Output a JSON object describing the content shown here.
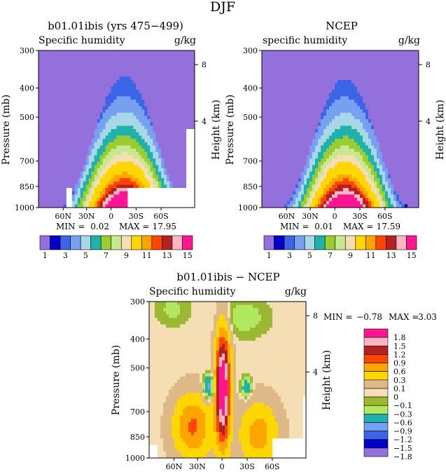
{
  "figure": {
    "title": "DJF"
  },
  "chart_data": [
    {
      "type": "heatmap",
      "title": "b01.01ibis (yrs 475−499)",
      "subtitle_left": "Specific humidity",
      "subtitle_right": "g/kg",
      "ylabel": "Pressure (mb)",
      "y2label": "Height (km)",
      "y_ticks": [
        "300",
        "400",
        "500",
        "700",
        "850",
        "1000"
      ],
      "y2_ticks": [
        "8",
        "4"
      ],
      "x_ticks": [
        "60N",
        "30N",
        "0",
        "30S",
        "60S"
      ],
      "ylim": [
        1000,
        300
      ],
      "min_label": "MIN =",
      "min_value": "0.02",
      "max_label": "MAX =",
      "max_value": "17.95",
      "levels": [
        "1",
        "3",
        "5",
        "7",
        "9",
        "11",
        "13",
        "15"
      ],
      "colors": [
        "#9370db",
        "#0000c8",
        "#3c64e6",
        "#78a0f0",
        "#a8d8e8",
        "#20b2aa",
        "#9acd32",
        "#c8e890",
        "#f5deb3",
        "#ffd700",
        "#ffa500",
        "#ff4500",
        "#b22222",
        "#ffb6c1",
        "#ff1493"
      ],
      "peak": 17.95,
      "center": 0.55,
      "width": 0.26,
      "height": 0.84,
      "skew": 0.0,
      "mask": [
        [
          0.18,
          0.22,
          0.88,
          1.0
        ],
        [
          0.58,
          0.96,
          0.88,
          1.0
        ],
        [
          0.95,
          1.0,
          0.5,
          1.0
        ]
      ]
    },
    {
      "type": "heatmap",
      "title": "NCEP",
      "subtitle_left": "specific humidity",
      "subtitle_right": "g/kg",
      "ylabel": "Pressure (mb)",
      "y2label": "Height (km)",
      "y_ticks": [
        "300",
        "400",
        "500",
        "700",
        "850",
        "1000"
      ],
      "y2_ticks": [
        "8",
        "4"
      ],
      "x_ticks": [
        "60N",
        "30N",
        "0",
        "30S",
        "60S"
      ],
      "ylim": [
        1000,
        300
      ],
      "min_label": "MIN =",
      "min_value": "0.01",
      "max_label": "MAX =",
      "max_value": "17.59",
      "levels": [
        "1",
        "3",
        "5",
        "7",
        "9",
        "11",
        "13",
        "15"
      ],
      "colors": [
        "#9370db",
        "#0000c8",
        "#3c64e6",
        "#78a0f0",
        "#a8d8e8",
        "#20b2aa",
        "#9acd32",
        "#c8e890",
        "#f5deb3",
        "#ffd700",
        "#ffa500",
        "#ff4500",
        "#b22222",
        "#ffb6c1",
        "#ff1493"
      ],
      "peak": 17.59,
      "center": 0.53,
      "width": 0.25,
      "height": 0.82,
      "skew": 0.0,
      "mask": []
    },
    {
      "type": "heatmap",
      "title": "b01.01ibis − NCEP",
      "subtitle_left": "Specific humidity",
      "subtitle_right": "g/kg",
      "ylabel": "Pressure (mb)",
      "y2label": "Height (km)",
      "y_ticks": [
        "300",
        "400",
        "500",
        "700",
        "850",
        "1000"
      ],
      "y2_ticks": [
        "8",
        "4"
      ],
      "x_ticks": [
        "60N",
        "30N",
        "0",
        "30S",
        "60S"
      ],
      "ylim": [
        1000,
        300
      ],
      "min_label": "MIN =",
      "min_value": "−0.78",
      "max_label": "MAX =",
      "max_value": "3.03",
      "levels": [
        "1.8",
        "1.5",
        "1.2",
        "0.9",
        "0.6",
        "0.3",
        "0.1",
        "0",
        "−0.1",
        "−0.3",
        "−0.6",
        "−0.9",
        "−1.2",
        "−1.5",
        "−1.8"
      ],
      "colors": [
        "#ff1493",
        "#ffb6c1",
        "#b22222",
        "#ff4500",
        "#ffa500",
        "#ffd700",
        "#deb887",
        "#f5deb3",
        "#9ab832",
        "#b0e860",
        "#20b2aa",
        "#78a0f0",
        "#3c64e6",
        "#0000c8",
        "#9370db"
      ],
      "min": -0.78,
      "max": 3.03,
      "mask": [
        [
          0.0,
          0.05,
          0.92,
          1.0
        ],
        [
          0.78,
          0.98,
          0.88,
          1.0
        ],
        [
          0.98,
          1.0,
          0.6,
          1.0
        ]
      ]
    }
  ]
}
